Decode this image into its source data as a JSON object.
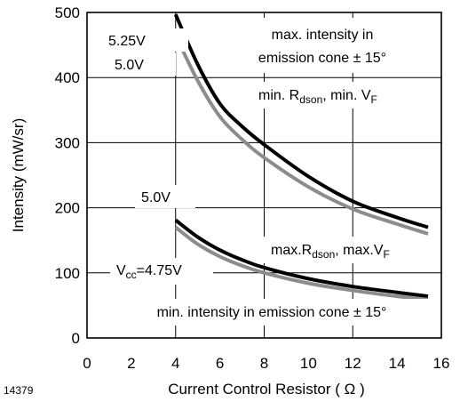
{
  "chart_data": {
    "type": "line",
    "figure_number": "14379",
    "xlabel": "Current Control Resistor ( Ω )",
    "ylabel": "Intensity (mW/sr)",
    "xlim": [
      0,
      16
    ],
    "ylim": [
      0,
      500
    ],
    "xticks": [
      0,
      2,
      4,
      6,
      8,
      10,
      12,
      14,
      16
    ],
    "yticks": [
      0,
      100,
      200,
      300,
      400,
      500
    ],
    "grid": true,
    "series": [
      {
        "name": "5.25V",
        "group": "max",
        "color": "#000000",
        "x": [
          4,
          5,
          6,
          7,
          8,
          10,
          12,
          14,
          15.4
        ],
        "y": [
          497,
          420,
          360,
          325,
          297,
          248,
          210,
          185,
          170
        ]
      },
      {
        "name": "5.0V",
        "group": "max",
        "color": "#8c8c8c",
        "x": [
          4,
          5,
          6,
          7,
          8,
          10,
          12,
          14,
          15.4
        ],
        "y": [
          465,
          395,
          340,
          305,
          277,
          232,
          198,
          175,
          160
        ]
      },
      {
        "name": "5.0V",
        "group": "min",
        "color": "#000000",
        "x": [
          4,
          5,
          6,
          7,
          8,
          10,
          12,
          14,
          15.4
        ],
        "y": [
          181,
          155,
          135,
          120,
          108,
          91,
          79,
          70,
          64
        ]
      },
      {
        "name": "Vcc=4.75V",
        "group": "min",
        "color": "#8c8c8c",
        "x": [
          4,
          5,
          6,
          7,
          8,
          10,
          12,
          14,
          15.4
        ],
        "y": [
          170,
          144,
          125,
          111,
          100,
          84,
          73,
          64,
          59
        ]
      }
    ]
  }
}
